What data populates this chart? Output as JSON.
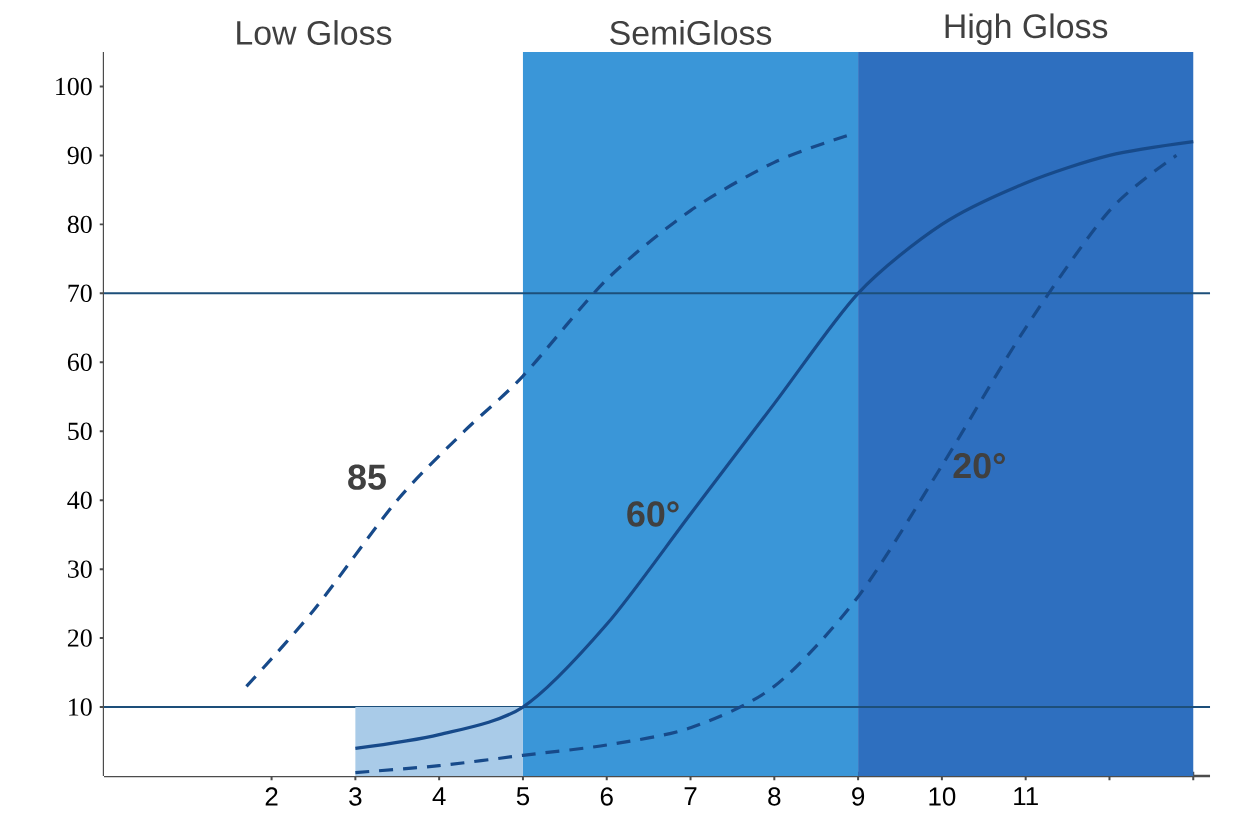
{
  "chart_data": {
    "type": "line",
    "xlim": [
      0,
      13.2
    ],
    "ylim": [
      0,
      105
    ],
    "xticks": [
      2,
      3,
      4,
      5,
      6,
      7,
      8,
      9,
      10,
      11,
      {
        "value": 12,
        "label": null
      },
      {
        "value": 13,
        "label": null
      }
    ],
    "yticks": [
      10,
      20,
      30,
      40,
      50,
      60,
      70,
      80,
      90,
      100
    ],
    "bands": [
      {
        "axis": "x",
        "from": 0,
        "to": 5,
        "label": "Low Gloss",
        "color": "#ffffff"
      },
      {
        "axis": "x",
        "from": 5,
        "to": 9,
        "label": "SemiGloss",
        "color": "#3a96d8"
      },
      {
        "axis": "x",
        "from": 9,
        "to": 13,
        "label": "High Gloss",
        "color": "#2e6fbf"
      }
    ],
    "ref_lines": [
      {
        "axis": "y",
        "value": 70,
        "color": "#1d4f7a"
      },
      {
        "axis": "y",
        "value": 10,
        "color": "#1d4f7a"
      }
    ],
    "series": [
      {
        "type": "area",
        "color": "#a9cbe8",
        "x": [
          3,
          5
        ],
        "values": [
          10,
          10
        ]
      },
      {
        "name": "85",
        "color": "#174a8a",
        "line_style": "dashed",
        "x": [
          1.7,
          2.5,
          3.5,
          4.3,
          5,
          6,
          7,
          8,
          8.9
        ],
        "values": [
          13,
          24,
          40,
          50,
          58,
          72,
          82,
          89,
          93
        ]
      },
      {
        "name": "60°",
        "color": "#174a8a",
        "line_style": "solid",
        "x": [
          3,
          4,
          5,
          6,
          7,
          8,
          9,
          10,
          11,
          12,
          13
        ],
        "values": [
          4,
          6,
          10,
          22,
          38,
          54,
          70,
          80,
          86,
          90,
          92
        ]
      },
      {
        "name": "20°",
        "color": "#174a8a",
        "line_style": "dashed",
        "x": [
          3,
          4,
          5,
          6,
          7,
          8,
          9,
          10,
          11,
          12,
          12.8
        ],
        "values": [
          0.5,
          1.5,
          3,
          4.5,
          7,
          13,
          26,
          45,
          65,
          82,
          90
        ]
      }
    ]
  }
}
